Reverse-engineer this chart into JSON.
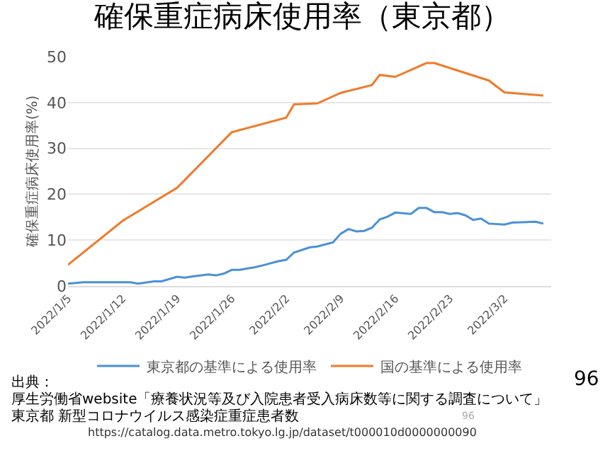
{
  "chart_data": {
    "type": "line",
    "title": "確保重症病床使用率（東京都）",
    "ylabel": "確保重症病床使用率(%)",
    "xlim": [
      "2022-01-05",
      "2022-03-08"
    ],
    "ylim": [
      0,
      50
    ],
    "yticks": [
      0,
      10,
      20,
      30,
      40,
      50
    ],
    "xticks": [
      {
        "value": "2022-01-05",
        "label": "2022/1/5"
      },
      {
        "value": "2022-01-12",
        "label": "2022/1/12"
      },
      {
        "value": "2022-01-19",
        "label": "2022/1/19"
      },
      {
        "value": "2022-01-26",
        "label": "2022/1/26"
      },
      {
        "value": "2022-02-02",
        "label": "2022/2/2"
      },
      {
        "value": "2022-02-09",
        "label": "2022/2/9"
      },
      {
        "value": "2022-02-16",
        "label": "2022/2/16"
      },
      {
        "value": "2022-02-23",
        "label": "2022/2/23"
      },
      {
        "value": "2022-03-02",
        "label": "2022/3/2"
      }
    ],
    "grid": "y",
    "legend": "bottom",
    "marker": "none",
    "line_style": "solid",
    "series": [
      {
        "name": "東京都の基準による使用率",
        "color": "#4a90d9",
        "x": [
          "2022-01-05",
          "2022-01-07",
          "2022-01-13",
          "2022-01-14",
          "2022-01-16",
          "2022-01-17",
          "2022-01-19",
          "2022-01-20",
          "2022-01-21",
          "2022-01-23",
          "2022-01-24",
          "2022-01-25",
          "2022-01-26",
          "2022-01-27",
          "2022-01-29",
          "2022-01-30",
          "2022-02-01",
          "2022-02-02",
          "2022-02-03",
          "2022-02-05",
          "2022-02-06",
          "2022-02-08",
          "2022-02-09",
          "2022-02-10",
          "2022-02-11",
          "2022-02-12",
          "2022-02-13",
          "2022-02-14",
          "2022-02-15",
          "2022-02-16",
          "2022-02-18",
          "2022-02-19",
          "2022-02-20",
          "2022-02-21",
          "2022-02-22",
          "2022-02-23",
          "2022-02-24",
          "2022-02-25",
          "2022-02-26",
          "2022-02-27",
          "2022-02-28",
          "2022-03-02",
          "2022-03-03",
          "2022-03-06",
          "2022-03-07"
        ],
        "values": [
          0.5,
          0.8,
          0.8,
          0.5,
          1.0,
          1.0,
          2.0,
          1.8,
          2.1,
          2.5,
          2.3,
          2.7,
          3.5,
          3.5,
          4.1,
          4.5,
          5.4,
          5.7,
          7.3,
          8.4,
          8.6,
          9.5,
          11.4,
          12.4,
          11.9,
          12.0,
          12.7,
          14.5,
          15.1,
          16.0,
          15.7,
          17.0,
          17.0,
          16.1,
          16.1,
          15.7,
          15.9,
          15.4,
          14.4,
          14.7,
          13.6,
          13.4,
          13.8,
          14.0,
          13.6
        ]
      },
      {
        "name": "国の基準による使用率",
        "color": "#f07a2a",
        "x": [
          "2022-01-05",
          "2022-01-12",
          "2022-01-19",
          "2022-01-26",
          "2022-02-02",
          "2022-02-03",
          "2022-02-06",
          "2022-02-09",
          "2022-02-13",
          "2022-02-14",
          "2022-02-16",
          "2022-02-20",
          "2022-02-21",
          "2022-02-28",
          "2022-03-02",
          "2022-03-07"
        ],
        "values": [
          4.6,
          14.2,
          21.4,
          33.5,
          36.7,
          39.6,
          39.8,
          42.1,
          43.8,
          46.0,
          45.6,
          48.6,
          48.6,
          44.8,
          42.2,
          41.5
        ]
      }
    ],
    "annotations": [
      "出典：",
      "厚生労働省website「療養状況等及び入院患者受入病床数等に関する調査について」",
      "東京都 新型コロナウイルス感染症重症患者数",
      "https://catalog.data.metro.tokyo.lg.jp/dataset/t000010d0000000090",
      "96",
      "96"
    ]
  }
}
